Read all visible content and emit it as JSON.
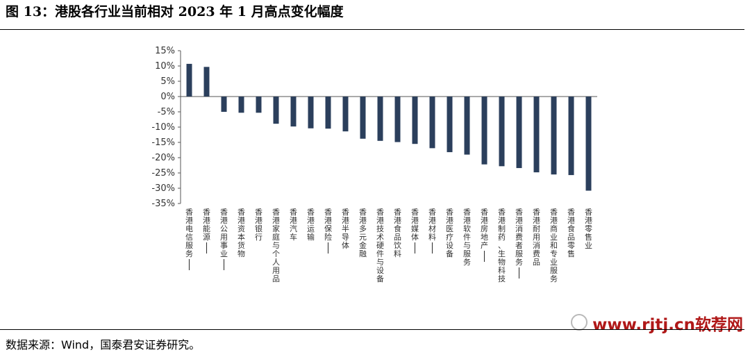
{
  "header": {
    "title": "图 13：港股各行业当前相对 2023 年 1 月高点变化幅度"
  },
  "footer": {
    "source": "数据来源：Wind，国泰君安证券研究。"
  },
  "watermark": {
    "text": "www.rjtj.cn软荐网",
    "color": "#b01818"
  },
  "chart_data": {
    "type": "bar",
    "bar_color": "#2b3f5c",
    "ylim": [
      -35,
      15
    ],
    "yticks": [
      15,
      10,
      5,
      0,
      -5,
      -10,
      -15,
      -20,
      -25,
      -30,
      -35
    ],
    "ytick_labels": [
      "15%",
      "10%",
      "5%",
      "0%",
      "-5%",
      "-10%",
      "-15%",
      "-20%",
      "-25%",
      "-30%",
      "-35%"
    ],
    "categories": [
      "香港电信服务II",
      "香港能源II",
      "香港公用事业II",
      "香港资本货物",
      "香港银行",
      "香港家庭与个人用品",
      "香港汽车",
      "香港运输",
      "香港保险II",
      "香港半导体",
      "香港多元金融",
      "香港技术硬件与设备",
      "香港食品饮料",
      "香港媒体II",
      "香港材料II",
      "香港医疗设备",
      "香港软件与服务",
      "香港房地产II",
      "香港制药、生物科技",
      "香港消费者服务II",
      "香港耐用消费品",
      "香港商业和专业服务",
      "香港食品零售",
      "香港零售业"
    ],
    "values": [
      10.7,
      9.7,
      -5.0,
      -5.3,
      -5.3,
      -8.9,
      -9.8,
      -10.4,
      -10.5,
      -11.4,
      -13.8,
      -14.5,
      -14.9,
      -15.5,
      -16.9,
      -18.2,
      -19.0,
      -22.2,
      -22.8,
      -23.4,
      -24.8,
      -25.5,
      -25.7,
      -30.8
    ]
  }
}
